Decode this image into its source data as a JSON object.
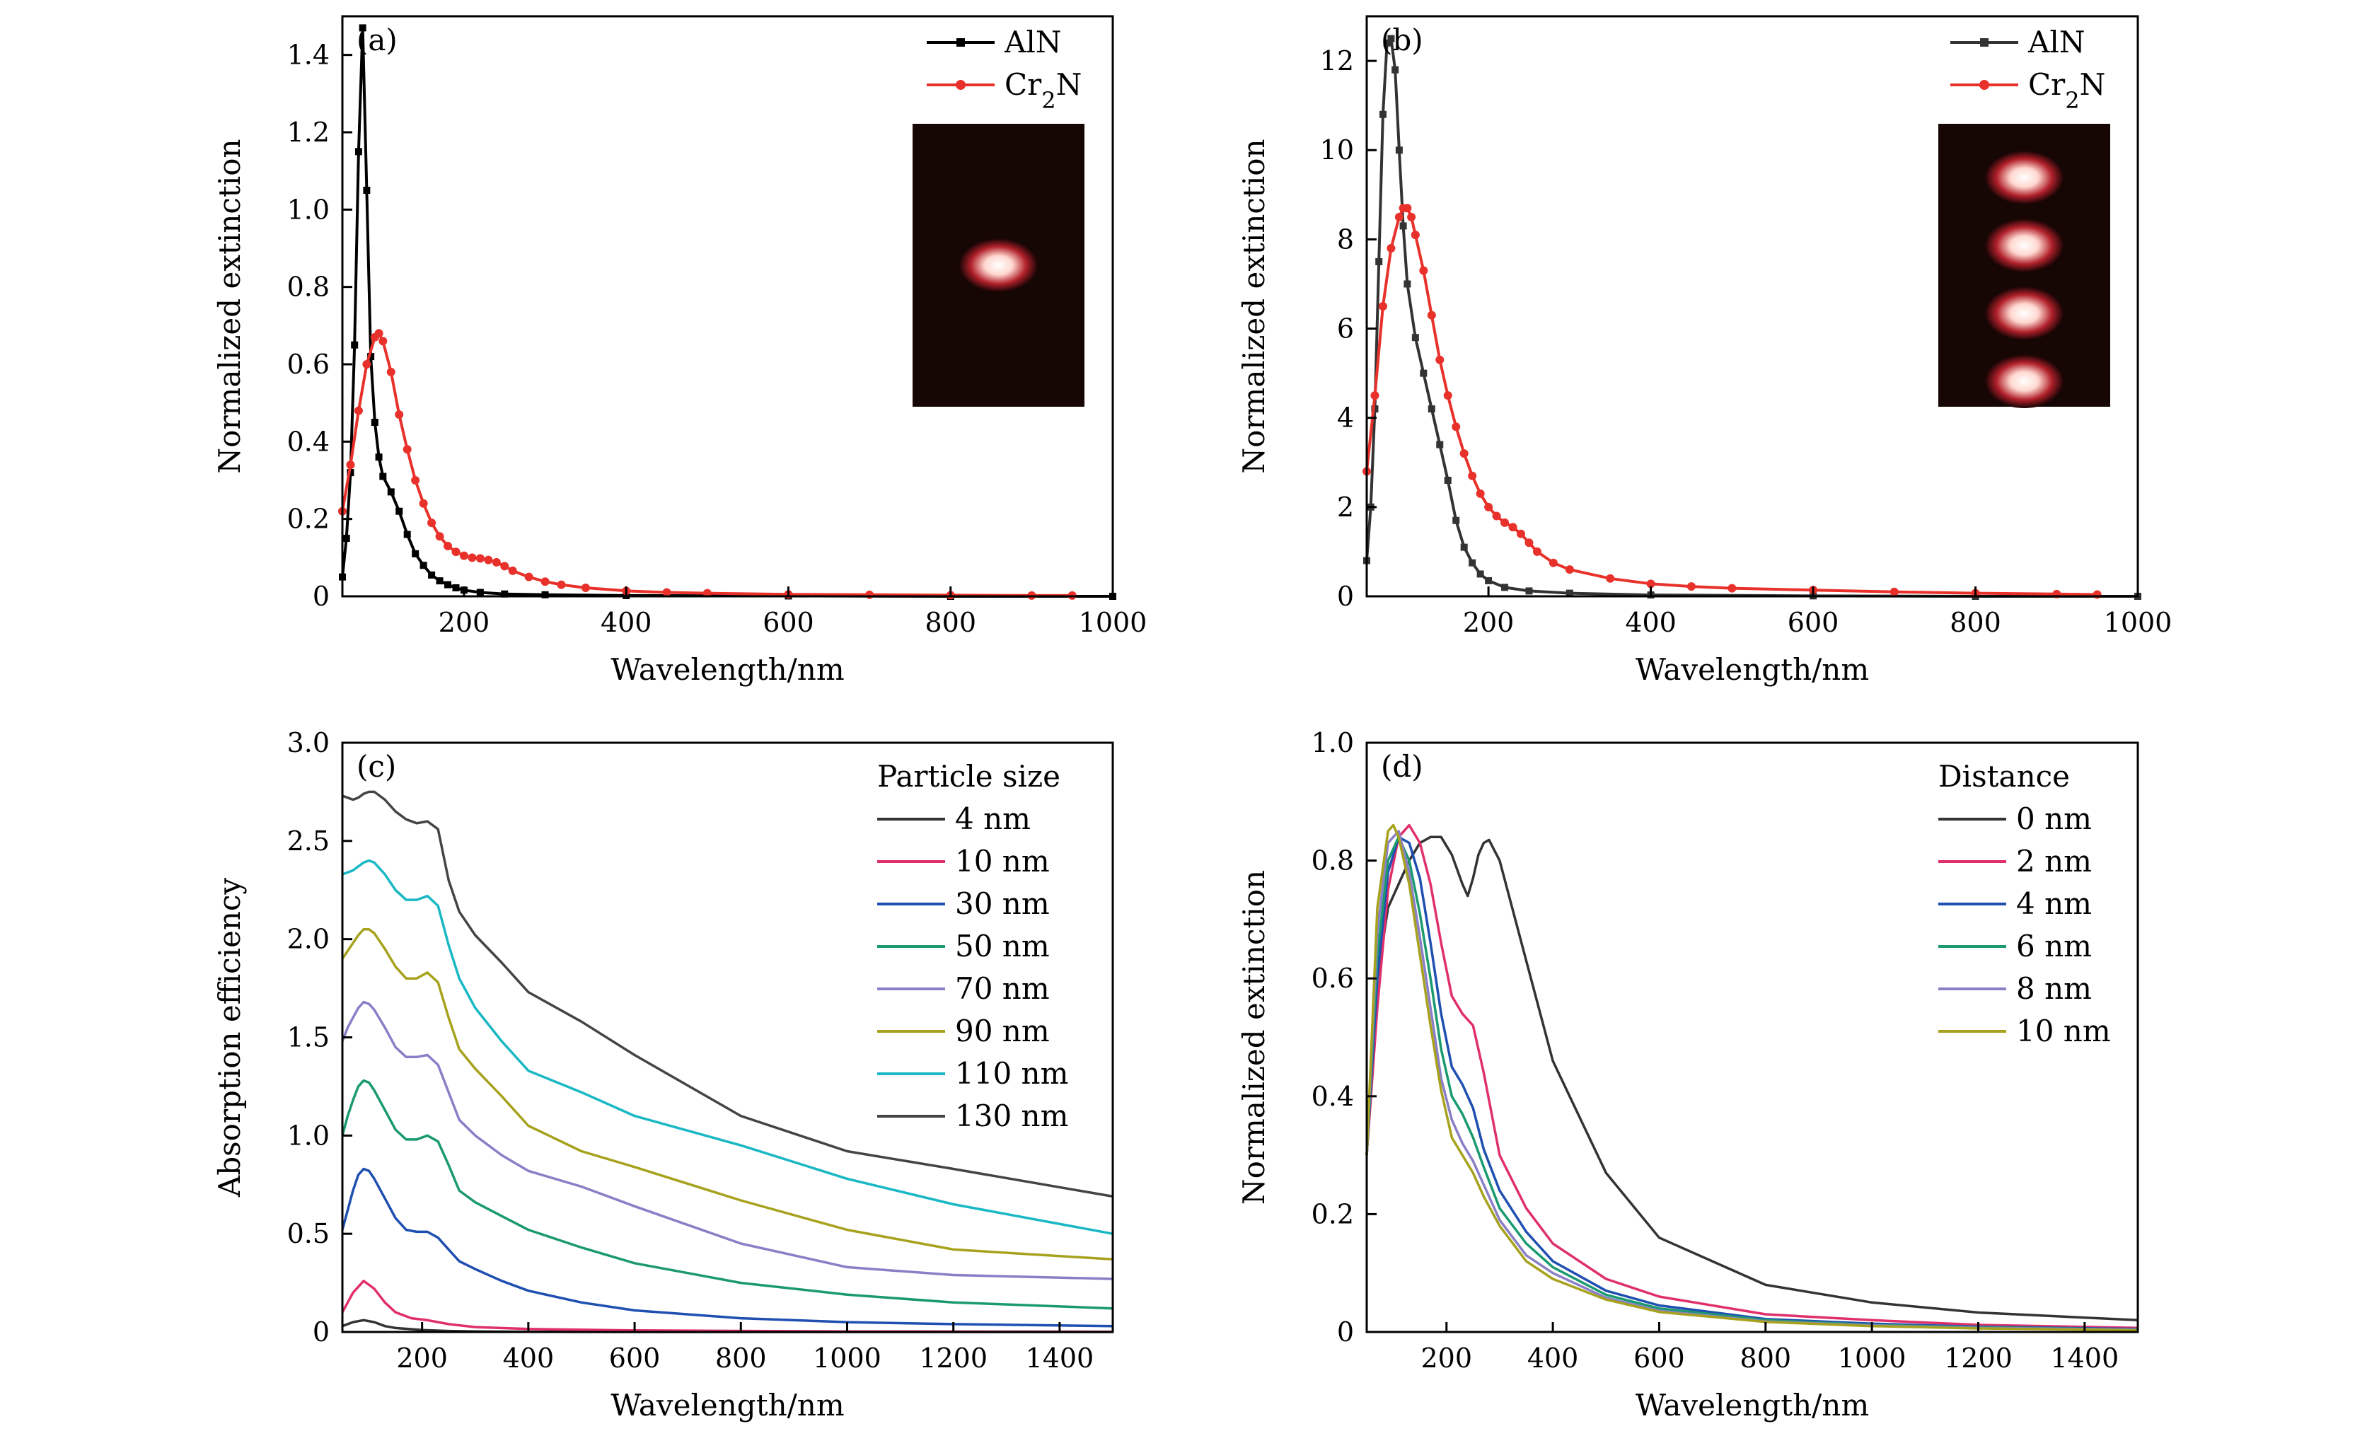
{
  "chart_data": [
    {
      "type": "line",
      "panel_label": "(a)",
      "xlabel": "Wavelength/nm",
      "ylabel": "Normalized extinction",
      "xlim": [
        50,
        1000
      ],
      "ylim": [
        0,
        1.5
      ],
      "xticks": [
        "200",
        "400",
        "600",
        "800",
        "1000"
      ],
      "yticks": [
        "0",
        "0.2",
        "0.4",
        "0.6",
        "0.8",
        "1.0",
        "1.2",
        "1.4"
      ],
      "legend_position": "top-right",
      "inset": "one bright particle on dark background",
      "series": [
        {
          "name": "AlN",
          "color": "#000000",
          "marker": "square",
          "x": [
            50,
            55,
            60,
            65,
            70,
            75,
            80,
            85,
            90,
            95,
            100,
            110,
            120,
            130,
            140,
            150,
            160,
            170,
            180,
            190,
            200,
            220,
            250,
            300,
            400,
            600,
            800,
            1000
          ],
          "y": [
            0.05,
            0.15,
            0.32,
            0.65,
            1.15,
            1.47,
            1.05,
            0.62,
            0.45,
            0.36,
            0.31,
            0.27,
            0.22,
            0.16,
            0.11,
            0.08,
            0.055,
            0.04,
            0.03,
            0.022,
            0.016,
            0.01,
            0.006,
            0.004,
            0.002,
            0.001,
            0.0,
            0.0
          ]
        },
        {
          "name": "Cr2N",
          "color": "#e8312a",
          "marker": "circle",
          "x": [
            50,
            60,
            70,
            80,
            90,
            95,
            100,
            110,
            120,
            130,
            140,
            150,
            160,
            170,
            180,
            190,
            200,
            210,
            220,
            230,
            240,
            250,
            260,
            280,
            300,
            320,
            350,
            400,
            450,
            500,
            600,
            700,
            800,
            900,
            950
          ],
          "y": [
            0.22,
            0.34,
            0.48,
            0.6,
            0.67,
            0.68,
            0.66,
            0.58,
            0.47,
            0.38,
            0.3,
            0.24,
            0.19,
            0.155,
            0.13,
            0.115,
            0.105,
            0.1,
            0.098,
            0.094,
            0.088,
            0.078,
            0.066,
            0.05,
            0.038,
            0.03,
            0.022,
            0.014,
            0.01,
            0.008,
            0.005,
            0.004,
            0.003,
            0.002,
            0.002
          ]
        }
      ]
    },
    {
      "type": "line",
      "panel_label": "(b)",
      "xlabel": "Wavelength/nm",
      "ylabel": "Normalized extinction",
      "xlim": [
        50,
        1000
      ],
      "ylim": [
        0,
        13
      ],
      "xticks": [
        "200",
        "400",
        "600",
        "800",
        "1000"
      ],
      "yticks": [
        "0",
        "2",
        "4",
        "6",
        "8",
        "10",
        "12"
      ],
      "legend_position": "top-right",
      "inset": "four bright particles stacked vertically on dark background",
      "series": [
        {
          "name": "AlN",
          "color": "#333333",
          "marker": "square",
          "x": [
            50,
            55,
            60,
            65,
            70,
            75,
            80,
            85,
            90,
            95,
            100,
            110,
            120,
            130,
            140,
            150,
            160,
            170,
            180,
            190,
            200,
            220,
            250,
            300,
            400,
            600,
            800,
            1000
          ],
          "y": [
            0.8,
            2.0,
            4.2,
            7.5,
            10.8,
            12.4,
            12.5,
            11.8,
            10.0,
            8.3,
            7.0,
            5.8,
            5.0,
            4.2,
            3.4,
            2.6,
            1.7,
            1.1,
            0.75,
            0.5,
            0.35,
            0.2,
            0.12,
            0.07,
            0.03,
            0.01,
            0.0,
            0.0
          ]
        },
        {
          "name": "Cr2N",
          "color": "#e8312a",
          "marker": "circle",
          "x": [
            50,
            60,
            70,
            80,
            90,
            95,
            100,
            105,
            110,
            120,
            130,
            140,
            150,
            160,
            170,
            180,
            190,
            200,
            210,
            220,
            230,
            240,
            250,
            260,
            280,
            300,
            350,
            400,
            450,
            500,
            600,
            700,
            800,
            900,
            950
          ],
          "y": [
            2.8,
            4.5,
            6.5,
            7.8,
            8.5,
            8.7,
            8.7,
            8.5,
            8.1,
            7.3,
            6.3,
            5.3,
            4.5,
            3.8,
            3.2,
            2.7,
            2.3,
            2.0,
            1.8,
            1.65,
            1.55,
            1.4,
            1.2,
            1.0,
            0.75,
            0.6,
            0.4,
            0.28,
            0.22,
            0.18,
            0.14,
            0.1,
            0.07,
            0.05,
            0.04
          ]
        }
      ]
    },
    {
      "type": "line",
      "panel_label": "(c)",
      "xlabel": "Wavelength/nm",
      "ylabel": "Absorption efficiency",
      "xlim": [
        50,
        1500
      ],
      "ylim": [
        0,
        3.0
      ],
      "xticks": [
        "200",
        "400",
        "600",
        "800",
        "1000",
        "1200",
        "1400"
      ],
      "yticks": [
        "0",
        "0.5",
        "1.0",
        "1.5",
        "2.0",
        "2.5",
        "3.0"
      ],
      "legend_title": "Particle size",
      "legend_position": "top-right",
      "series": [
        {
          "name": "4 nm",
          "color": "#333333",
          "x": [
            50,
            70,
            90,
            110,
            130,
            150,
            200,
            250,
            300,
            400,
            600,
            1000,
            1500
          ],
          "y": [
            0.03,
            0.05,
            0.06,
            0.05,
            0.03,
            0.02,
            0.01,
            0.005,
            0.003,
            0.001,
            0.0,
            0.0,
            0.0
          ]
        },
        {
          "name": "10 nm",
          "color": "#e0306a",
          "x": [
            50,
            70,
            90,
            110,
            130,
            150,
            180,
            210,
            230,
            250,
            300,
            400,
            600,
            1000,
            1500
          ],
          "y": [
            0.1,
            0.2,
            0.26,
            0.22,
            0.15,
            0.1,
            0.07,
            0.06,
            0.05,
            0.04,
            0.025,
            0.015,
            0.008,
            0.003,
            0.001
          ]
        },
        {
          "name": "30 nm",
          "color": "#1f4fb0",
          "x": [
            50,
            60,
            70,
            80,
            90,
            100,
            110,
            130,
            150,
            170,
            190,
            210,
            230,
            250,
            270,
            300,
            350,
            400,
            500,
            600,
            800,
            1000,
            1200,
            1500
          ],
          "y": [
            0.52,
            0.62,
            0.72,
            0.8,
            0.83,
            0.82,
            0.78,
            0.68,
            0.58,
            0.52,
            0.51,
            0.51,
            0.48,
            0.42,
            0.36,
            0.32,
            0.26,
            0.21,
            0.15,
            0.11,
            0.07,
            0.05,
            0.04,
            0.03
          ]
        },
        {
          "name": "50 nm",
          "color": "#1a9a6e",
          "x": [
            50,
            60,
            70,
            80,
            90,
            100,
            110,
            130,
            150,
            170,
            190,
            210,
            230,
            250,
            270,
            300,
            350,
            400,
            500,
            600,
            800,
            1000,
            1200,
            1500
          ],
          "y": [
            1.0,
            1.1,
            1.18,
            1.25,
            1.28,
            1.27,
            1.23,
            1.13,
            1.03,
            0.98,
            0.98,
            1.0,
            0.97,
            0.85,
            0.72,
            0.66,
            0.59,
            0.52,
            0.43,
            0.35,
            0.25,
            0.19,
            0.15,
            0.12
          ]
        },
        {
          "name": "70 nm",
          "color": "#8a7fc7",
          "x": [
            50,
            60,
            70,
            80,
            90,
            100,
            110,
            130,
            150,
            170,
            190,
            210,
            230,
            250,
            270,
            300,
            350,
            400,
            500,
            600,
            800,
            1000,
            1200,
            1500
          ],
          "y": [
            1.48,
            1.55,
            1.6,
            1.65,
            1.68,
            1.67,
            1.64,
            1.55,
            1.45,
            1.4,
            1.4,
            1.41,
            1.36,
            1.22,
            1.08,
            1.0,
            0.9,
            0.82,
            0.74,
            0.64,
            0.45,
            0.33,
            0.29,
            0.27
          ]
        },
        {
          "name": "90 nm",
          "color": "#a7a21d",
          "x": [
            50,
            60,
            70,
            80,
            90,
            100,
            110,
            130,
            150,
            170,
            190,
            210,
            230,
            250,
            270,
            300,
            350,
            400,
            500,
            600,
            800,
            1000,
            1200,
            1500
          ],
          "y": [
            1.9,
            1.94,
            1.98,
            2.02,
            2.05,
            2.05,
            2.03,
            1.95,
            1.86,
            1.8,
            1.8,
            1.83,
            1.78,
            1.6,
            1.44,
            1.34,
            1.2,
            1.05,
            0.92,
            0.84,
            0.67,
            0.52,
            0.42,
            0.37
          ]
        },
        {
          "name": "110 nm",
          "color": "#19b8c4",
          "x": [
            50,
            60,
            70,
            80,
            90,
            100,
            110,
            130,
            150,
            170,
            190,
            210,
            230,
            250,
            270,
            300,
            350,
            400,
            500,
            600,
            800,
            1000,
            1200,
            1500
          ],
          "y": [
            2.33,
            2.34,
            2.35,
            2.37,
            2.39,
            2.4,
            2.39,
            2.33,
            2.25,
            2.2,
            2.2,
            2.22,
            2.17,
            1.97,
            1.8,
            1.65,
            1.48,
            1.33,
            1.22,
            1.1,
            0.95,
            0.78,
            0.65,
            0.5
          ]
        },
        {
          "name": "130 nm",
          "color": "#444444",
          "x": [
            50,
            60,
            70,
            80,
            90,
            100,
            110,
            130,
            150,
            170,
            190,
            210,
            230,
            250,
            270,
            300,
            350,
            400,
            500,
            600,
            800,
            1000,
            1200,
            1500
          ],
          "y": [
            2.73,
            2.72,
            2.71,
            2.72,
            2.74,
            2.75,
            2.75,
            2.71,
            2.65,
            2.61,
            2.59,
            2.6,
            2.56,
            2.3,
            2.14,
            2.02,
            1.88,
            1.73,
            1.58,
            1.41,
            1.1,
            0.92,
            0.83,
            0.69
          ]
        }
      ]
    },
    {
      "type": "line",
      "panel_label": "(d)",
      "xlabel": "Wavelength/nm",
      "ylabel": "Normalized extinction",
      "xlim": [
        50,
        1500
      ],
      "ylim": [
        0,
        1.0
      ],
      "xticks": [
        "200",
        "400",
        "600",
        "800",
        "1000",
        "1200",
        "1400"
      ],
      "yticks": [
        "0",
        "0.2",
        "0.4",
        "0.6",
        "0.8",
        "1.0"
      ],
      "legend_title": "Distance",
      "legend_position": "top-right",
      "series": [
        {
          "name": "0 nm",
          "color": "#333333",
          "x": [
            50,
            70,
            90,
            110,
            130,
            150,
            170,
            190,
            210,
            230,
            240,
            250,
            260,
            270,
            280,
            300,
            350,
            400,
            500,
            600,
            800,
            1000,
            1200,
            1500
          ],
          "y": [
            0.3,
            0.6,
            0.72,
            0.76,
            0.8,
            0.83,
            0.84,
            0.84,
            0.81,
            0.76,
            0.74,
            0.77,
            0.81,
            0.83,
            0.835,
            0.8,
            0.63,
            0.46,
            0.27,
            0.16,
            0.08,
            0.05,
            0.033,
            0.02
          ]
        },
        {
          "name": "2 nm",
          "color": "#e0306a",
          "x": [
            50,
            70,
            90,
            110,
            130,
            150,
            170,
            190,
            210,
            230,
            250,
            270,
            300,
            350,
            400,
            500,
            600,
            800,
            1000,
            1200,
            1500
          ],
          "y": [
            0.3,
            0.55,
            0.75,
            0.84,
            0.86,
            0.83,
            0.76,
            0.66,
            0.57,
            0.54,
            0.52,
            0.44,
            0.3,
            0.21,
            0.15,
            0.09,
            0.06,
            0.03,
            0.02,
            0.012,
            0.007
          ]
        },
        {
          "name": "4 nm",
          "color": "#1f4fb0",
          "x": [
            50,
            70,
            90,
            110,
            130,
            150,
            170,
            190,
            210,
            230,
            250,
            270,
            300,
            350,
            400,
            500,
            600,
            800,
            1000,
            1200,
            1500
          ],
          "y": [
            0.3,
            0.6,
            0.78,
            0.84,
            0.83,
            0.77,
            0.66,
            0.54,
            0.45,
            0.42,
            0.38,
            0.31,
            0.24,
            0.17,
            0.12,
            0.07,
            0.045,
            0.022,
            0.014,
            0.009,
            0.005
          ]
        },
        {
          "name": "6 nm",
          "color": "#1a9a6e",
          "x": [
            50,
            70,
            90,
            110,
            130,
            150,
            170,
            190,
            210,
            230,
            250,
            270,
            300,
            350,
            400,
            500,
            600,
            800,
            1000,
            1200,
            1500
          ],
          "y": [
            0.3,
            0.64,
            0.8,
            0.84,
            0.8,
            0.71,
            0.6,
            0.48,
            0.4,
            0.37,
            0.33,
            0.28,
            0.21,
            0.15,
            0.11,
            0.063,
            0.04,
            0.02,
            0.012,
            0.008,
            0.004
          ]
        },
        {
          "name": "8 nm",
          "color": "#8a7fc7",
          "x": [
            50,
            70,
            90,
            110,
            130,
            150,
            170,
            190,
            210,
            230,
            250,
            270,
            300,
            350,
            400,
            500,
            600,
            800,
            1000,
            1200,
            1500
          ],
          "y": [
            0.3,
            0.68,
            0.83,
            0.85,
            0.78,
            0.67,
            0.55,
            0.43,
            0.36,
            0.32,
            0.29,
            0.25,
            0.19,
            0.13,
            0.1,
            0.058,
            0.036,
            0.018,
            0.011,
            0.007,
            0.004
          ]
        },
        {
          "name": "10 nm",
          "color": "#a7a21d",
          "x": [
            50,
            70,
            90,
            100,
            110,
            130,
            150,
            170,
            190,
            210,
            230,
            250,
            270,
            300,
            350,
            400,
            500,
            600,
            800,
            1000,
            1200,
            1500
          ],
          "y": [
            0.3,
            0.72,
            0.85,
            0.86,
            0.84,
            0.76,
            0.64,
            0.52,
            0.41,
            0.33,
            0.3,
            0.27,
            0.23,
            0.18,
            0.12,
            0.09,
            0.055,
            0.034,
            0.017,
            0.01,
            0.006,
            0.003
          ]
        }
      ]
    }
  ]
}
